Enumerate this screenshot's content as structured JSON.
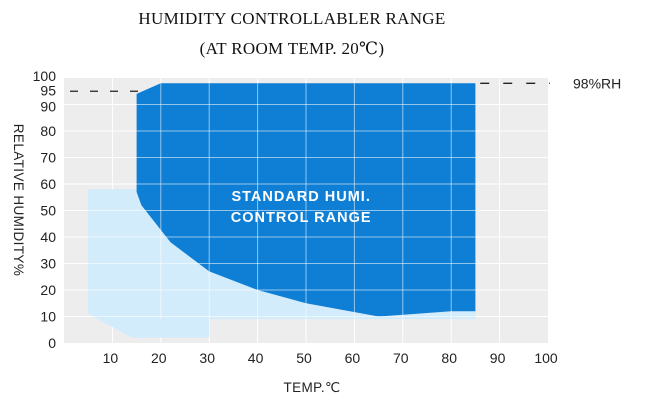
{
  "chart_data": {
    "type": "area",
    "title": "HUMIDITY CONTROLLABLER RANGE",
    "subtitle": "(AT ROOM TEMP. 20℃)",
    "xlabel": "TEMP.℃",
    "ylabel": "RELATIVE HUMIDITY%",
    "xlim": [
      0,
      100
    ],
    "ylim": [
      0,
      100
    ],
    "x_ticks": [
      10,
      20,
      30,
      40,
      50,
      60,
      70,
      80,
      90,
      100
    ],
    "y_ticks": [
      0,
      10,
      20,
      30,
      40,
      50,
      60,
      70,
      80,
      90,
      95,
      100
    ],
    "grid": true,
    "colors": {
      "plot_background": "#ededed",
      "grid": "#ffffff",
      "standard_region": "#0f7fd6",
      "extended_region": "#d3ecfb",
      "dashed_line": "#222222"
    },
    "series": [
      {
        "label": "STANDARD HUMI. CONTROL RANGE",
        "label_lines": [
          "STANDARD HUMI.",
          "CONTROL RANGE"
        ],
        "boundary": [
          [
            15,
            94
          ],
          [
            20,
            98
          ],
          [
            85,
            98
          ],
          [
            85,
            12
          ],
          [
            80,
            12
          ],
          [
            65,
            10
          ],
          [
            50,
            15
          ],
          [
            40,
            20
          ],
          [
            30,
            27
          ],
          [
            22,
            38
          ],
          [
            16,
            52
          ],
          [
            15,
            57
          ]
        ]
      },
      {
        "boundary": [
          [
            5,
            58
          ],
          [
            15,
            58
          ],
          [
            15,
            57
          ],
          [
            16,
            52
          ],
          [
            22,
            38
          ],
          [
            30,
            27
          ],
          [
            40,
            20
          ],
          [
            50,
            15
          ],
          [
            65,
            10
          ],
          [
            80,
            12
          ],
          [
            85,
            12
          ],
          [
            85,
            9
          ],
          [
            30,
            9
          ],
          [
            30,
            2
          ],
          [
            14,
            2
          ],
          [
            5,
            11
          ]
        ]
      }
    ],
    "annotations": [
      {
        "text": "98%RH",
        "y": 98,
        "style": "dashed"
      }
    ]
  }
}
